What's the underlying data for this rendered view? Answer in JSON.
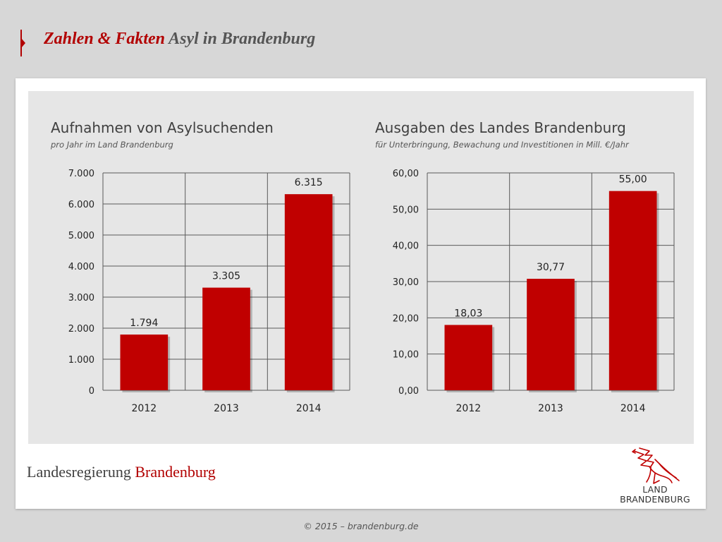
{
  "header": {
    "title_accent": "Zahlen & Fakten",
    "title_rest": "Asyl in Brandenburg"
  },
  "colors": {
    "brand_red": "#b20000",
    "bar_red": "#c00000",
    "panel_bg": "#e6e6e6",
    "page_bg": "#d7d7d7"
  },
  "chart_data": [
    {
      "type": "bar",
      "title": "Aufnahmen von Asylsuchenden",
      "subtitle": "pro Jahr im Land Brandenburg",
      "categories": [
        "2012",
        "2013",
        "2014"
      ],
      "values": [
        1794,
        3305,
        6315
      ],
      "value_labels": [
        "1.794",
        "3.305",
        "6.315"
      ],
      "ylim": [
        0,
        7000
      ],
      "yticks": [
        0,
        1000,
        2000,
        3000,
        4000,
        5000,
        6000,
        7000
      ],
      "ytick_labels": [
        "0",
        "1.000",
        "2.000",
        "3.000",
        "4.000",
        "5.000",
        "6.000",
        "7.000"
      ],
      "xlabel": "",
      "ylabel": "",
      "grid": true,
      "legend": "none"
    },
    {
      "type": "bar",
      "title": "Ausgaben des Landes Brandenburg",
      "subtitle": "für Unterbringung, Bewachung und Investitionen in Mill. €/Jahr",
      "categories": [
        "2012",
        "2013",
        "2014"
      ],
      "values": [
        18.03,
        30.77,
        55.0
      ],
      "value_labels": [
        "18,03",
        "30,77",
        "55,00"
      ],
      "ylim": [
        0,
        60
      ],
      "yticks": [
        0,
        10,
        20,
        30,
        40,
        50,
        60
      ],
      "ytick_labels": [
        "0,00",
        "10,00",
        "20,00",
        "30,00",
        "40,00",
        "50,00",
        "60,00"
      ],
      "xlabel": "",
      "ylabel": "",
      "grid": true,
      "legend": "none"
    }
  ],
  "footer": {
    "org_name": "Landesregierung",
    "org_accent": "Brandenburg",
    "logo_line1": "LAND",
    "logo_line2": "BRANDENBURG",
    "logo_icon": "red-eagle-icon",
    "copyright": "© 2015 – brandenburg.de"
  }
}
